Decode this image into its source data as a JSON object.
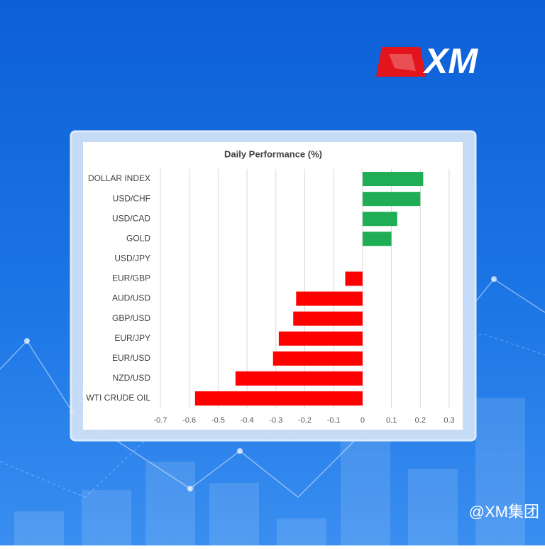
{
  "brand": "XM",
  "watermark": "@XM集团",
  "chart_data": {
    "type": "bar",
    "orientation": "horizontal",
    "title": "Daily Performance (%)",
    "categories": [
      "DOLLAR INDEX",
      "USD/CHF",
      "USD/CAD",
      "GOLD",
      "USD/JPY",
      "EUR/GBP",
      "AUD/USD",
      "GBP/USD",
      "EUR/JPY",
      "EUR/USD",
      "NZD/USD",
      "WTI CRUDE OIL"
    ],
    "values": [
      0.21,
      0.2,
      0.12,
      0.1,
      0,
      -0.06,
      -0.23,
      -0.24,
      -0.29,
      -0.31,
      -0.44,
      -0.58
    ],
    "colors": {
      "positive": "#1fae55",
      "negative": "#ff0000"
    },
    "xlim": [
      -0.7,
      0.3
    ],
    "xticks": [
      -0.7,
      -0.6,
      -0.5,
      -0.4,
      -0.3,
      -0.2,
      -0.1,
      0,
      0.1,
      0.2,
      0.3
    ],
    "grid": true
  }
}
